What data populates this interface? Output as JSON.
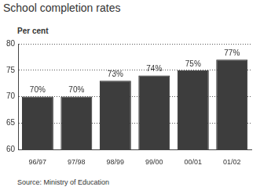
{
  "chart_data": {
    "type": "bar",
    "title": "School completion rates",
    "ylabel": "Per cent",
    "annotations": [
      "Source: Ministry of Education"
    ],
    "categories": [
      "96/97",
      "97/98",
      "98/99",
      "99/00",
      "00/01",
      "01/02"
    ],
    "values": [
      70,
      70,
      73,
      74,
      75,
      77
    ],
    "value_labels": [
      "70%",
      "70%",
      "73%",
      "74%",
      "75%",
      "77%"
    ],
    "data_labels": true,
    "color": "#3d3d3d",
    "ylim": [
      60,
      80
    ],
    "yticks": [
      60,
      65,
      70,
      75,
      80
    ],
    "grid": true
  }
}
